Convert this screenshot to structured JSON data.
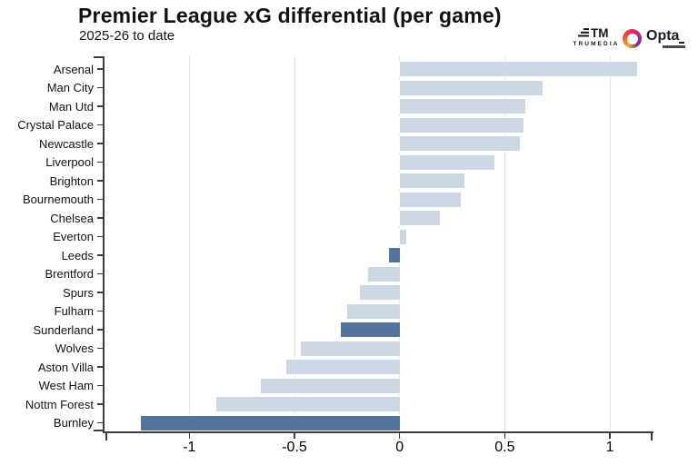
{
  "header": {
    "title": "Premier League xG differential (per game)",
    "subtitle": "2025-26 to date",
    "logos": {
      "trumedia_label": "TRUMEDIA",
      "opta_label": "Opta"
    }
  },
  "chart_data": {
    "type": "bar",
    "orientation": "horizontal",
    "title": "Premier League xG differential (per game)",
    "subtitle": "2025-26 to date",
    "xlabel": "",
    "ylabel": "",
    "xlim": [
      -1.4,
      1.2
    ],
    "x_ticks": [
      -1,
      -0.5,
      0,
      0.5,
      1
    ],
    "x_tick_labels": [
      "-1",
      "-0.5",
      "0",
      "0.5",
      "1"
    ],
    "grid": true,
    "legend": "none",
    "categories": [
      "Arsenal",
      "Man City",
      "Man Utd",
      "Crystal Palace",
      "Newcastle",
      "Liverpool",
      "Brighton",
      "Bournemouth",
      "Chelsea",
      "Everton",
      "Leeds",
      "Brentford",
      "Spurs",
      "Fulham",
      "Sunderland",
      "Wolves",
      "Aston Villa",
      "West Ham",
      "Nottm Forest",
      "Burnley"
    ],
    "values": [
      1.13,
      0.68,
      0.6,
      0.59,
      0.57,
      0.45,
      0.31,
      0.29,
      0.19,
      0.03,
      -0.05,
      -0.15,
      -0.19,
      -0.25,
      -0.28,
      -0.47,
      -0.54,
      -0.66,
      -0.87,
      -1.23
    ],
    "highlighted": [
      "Leeds",
      "Sunderland",
      "Burnley"
    ],
    "colors": {
      "bar": "#cdd6e3",
      "highlight": "#54739d",
      "grid": "#e3e3e3",
      "axis": "#3c3c3c",
      "text": "#121212"
    }
  }
}
